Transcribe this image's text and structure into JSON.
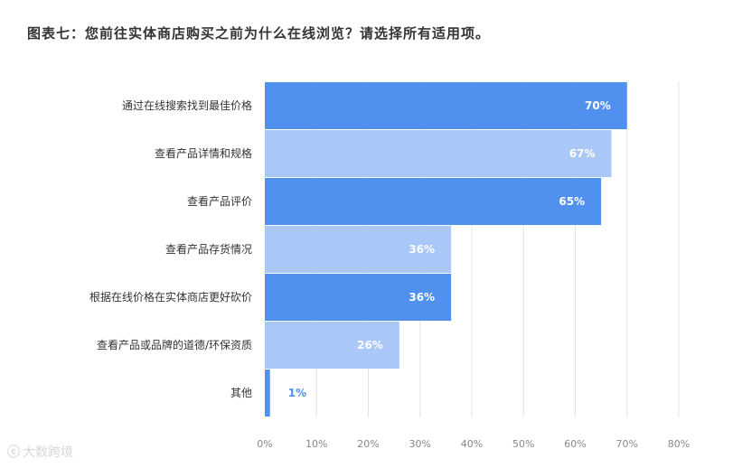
{
  "title": "图表七：您前往实体商店购买之前为什么在线浏览？请选择所有适用项。",
  "watermark": {
    "text": "大数跨境"
  },
  "colors": {
    "bar_dark": "#5090ef",
    "bar_light": "#a9c8f8",
    "value_on_bar": "#ffffff",
    "value_outside": "#5090ef",
    "grid": "#e4e4e4",
    "watermark": "#d8d8d8"
  },
  "chart_data": {
    "type": "bar",
    "orientation": "horizontal",
    "title": "图表七：您前往实体商店购买之前为什么在线浏览？请选择所有适用项。",
    "categories": [
      "通过在线搜索找到最佳价格",
      "查看产品详情和规格",
      "查看产品评价",
      "查看产品存货情况",
      "根据在线价格在实体商店更好砍价",
      "查看产品或品牌的道德/环保资质",
      "其他"
    ],
    "values": [
      70,
      67,
      65,
      36,
      36,
      26,
      1
    ],
    "value_labels": [
      "70%",
      "67%",
      "65%",
      "36%",
      "36%",
      "26%",
      "1%"
    ],
    "bar_colors": [
      "#5090ef",
      "#a9c8f8",
      "#5090ef",
      "#a9c8f8",
      "#5090ef",
      "#a9c8f8",
      "#5090ef"
    ],
    "xlim": [
      0,
      80
    ],
    "x_ticks": [
      "0%",
      "10%",
      "20%",
      "30%",
      "40%",
      "50%",
      "60%",
      "70%",
      "80%"
    ],
    "xlabel": "",
    "ylabel": "",
    "grid": true,
    "legend": false
  }
}
